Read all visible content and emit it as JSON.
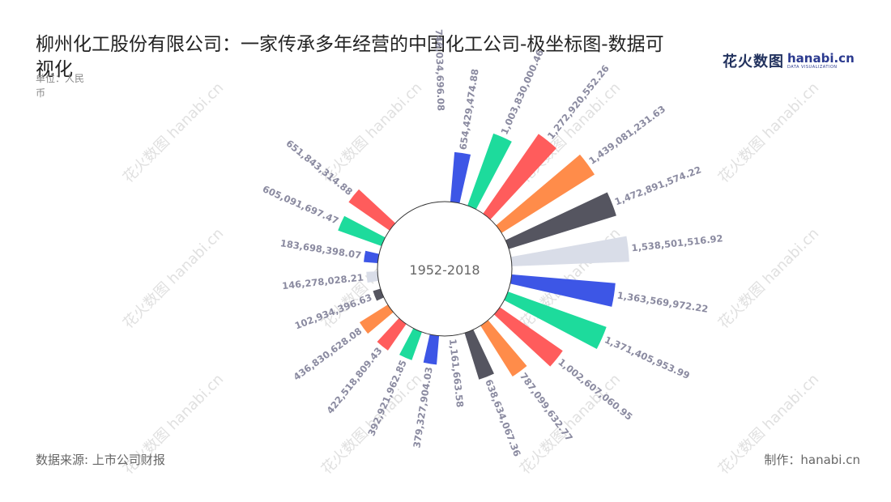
{
  "title": "柳州化工股份有限公司：一家传承多年经营的中国化工公司-极坐标图-数据可视化",
  "unit": "单位：人民币",
  "brand": {
    "cn": "花火数图",
    "en": "hanabi.cn",
    "en_sub": "DATA VISUALIZATION",
    "watermark": "花火数图 hanabi.cn"
  },
  "footer": {
    "source": "数据来源: 上市公司财报",
    "maker": "制作：hanabi.cn"
  },
  "chart_data": {
    "type": "bar",
    "polar": true,
    "center_label": "1952-2018",
    "categories": [
      "",
      "",
      "",
      "",
      "",
      "",
      "",
      "",
      "",
      "",
      "",
      "",
      "",
      "",
      "",
      "",
      "",
      "",
      "",
      "",
      ""
    ],
    "values": [
      654429474.88,
      1003830000.46,
      1272920552.26,
      1439081231.63,
      1472891574.22,
      1538501516.92,
      1363569972.22,
      1371405953.99,
      1002607060.95,
      787099632.77,
      638634067.36,
      1161663.58,
      379327904.03,
      392921962.85,
      422518809.43,
      436830628.08,
      102934396.63,
      146278028.21,
      183698398.07,
      605091697.47,
      651843314.88
    ],
    "labels": [
      "654,429,474.88",
      "1,003,830,000.46",
      "1,272,920,552.26",
      "1,439,081,231.63",
      "1,472,891,574.22",
      "1,538,501,516.92",
      "1,363,569,972.22",
      "1,371,405,953.99",
      "1,002,607,060.95",
      "787,099,632.77",
      "638,634,067.36",
      "1,161,663.58",
      "379,327,904.03",
      "392,921,962.85",
      "422,518,809.43",
      "436,830,628.08",
      "102,934,396.63",
      "146,278,028.21",
      "183,698,398.07",
      "605,091,697.47",
      "651,843,314.88"
    ],
    "extra_label": "746,034,696.08",
    "colors": [
      "#3d56e6",
      "#1ddb9c",
      "#ff5c5c",
      "#ff8c4a",
      "#555560",
      "#d9dde8"
    ],
    "grid": false,
    "legend": "none"
  }
}
